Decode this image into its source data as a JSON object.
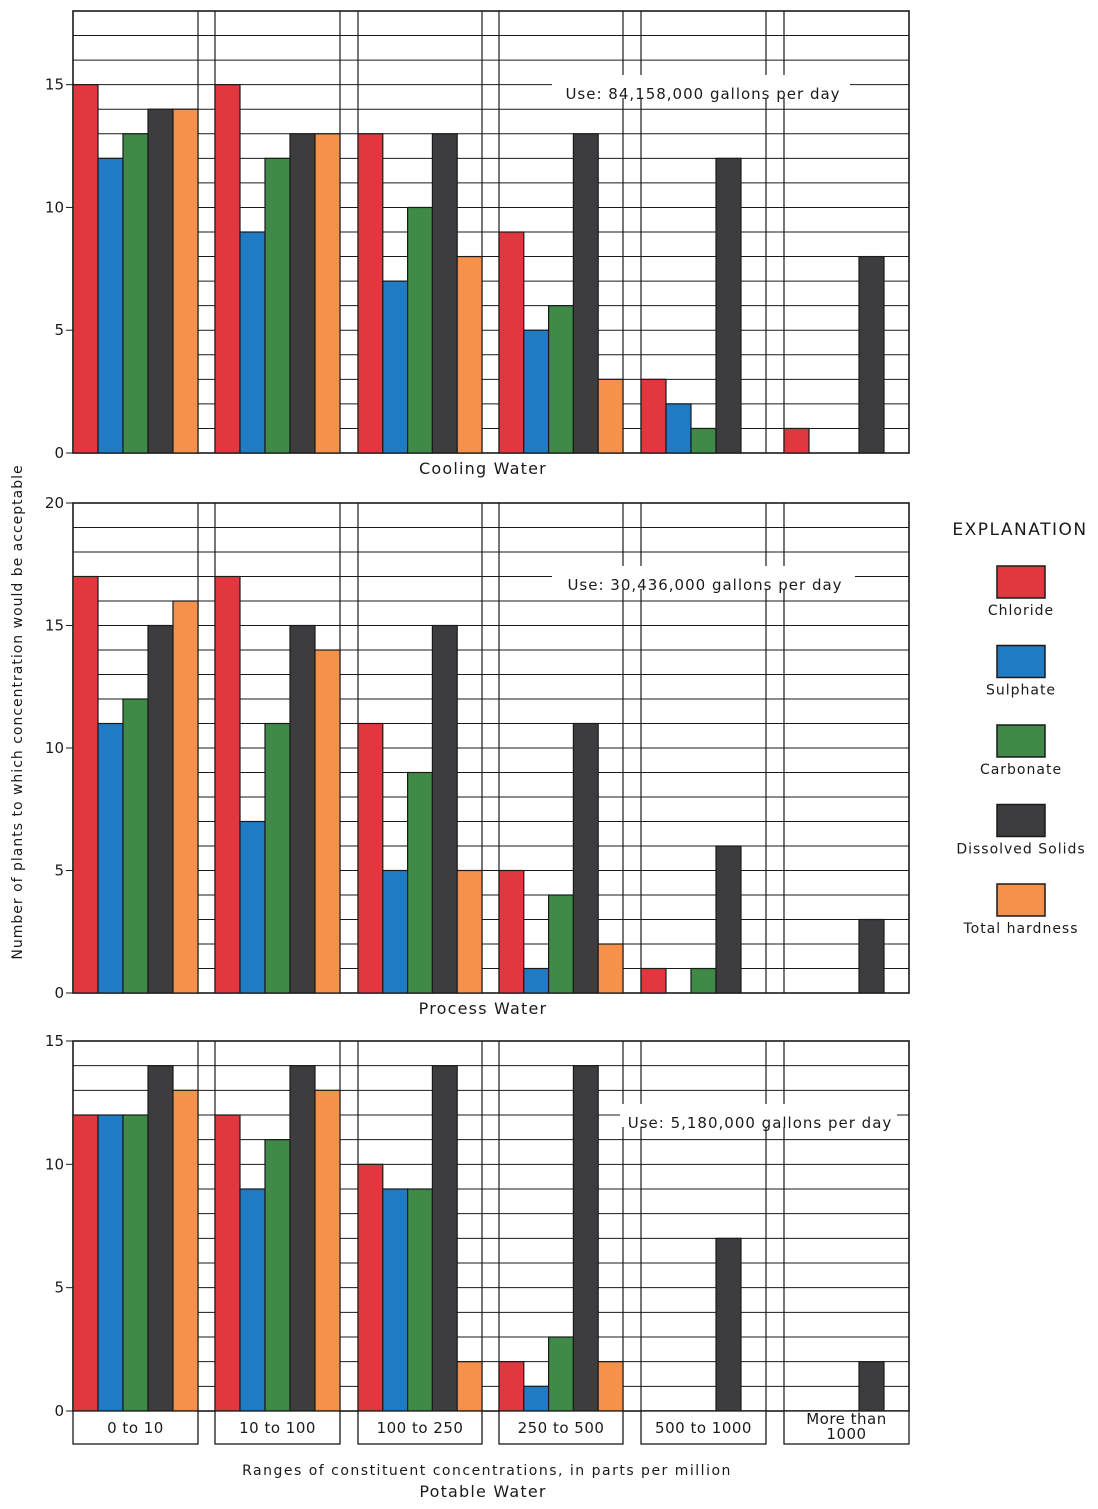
{
  "chart_data": {
    "type": "bar",
    "ylabel": "Number of plants to which concentration would be acceptable",
    "xlabel": "Ranges of constituent concentrations, in parts per million",
    "categories": [
      "0 to 10",
      "10 to 100",
      "100 to 250",
      "250 to 500",
      "500 to 1000",
      "More than 1000"
    ],
    "legend": {
      "title": "EXPLANATION",
      "placement": "right",
      "entries": [
        {
          "name": "Chloride",
          "color": "#e0383e"
        },
        {
          "name": "Sulphate",
          "color": "#1f7bc4"
        },
        {
          "name": "Carbonate",
          "color": "#3f8a46"
        },
        {
          "name": "Dissolved Solids",
          "color": "#3d3d3f"
        },
        {
          "name": "Total hardness",
          "color": "#f5914a"
        }
      ]
    },
    "panels": [
      {
        "title": "Cooling Water",
        "use_note": "Use: 84,158,000 gallons per day",
        "ylim": [
          0,
          18
        ],
        "yticks": [
          0,
          5,
          10,
          15
        ],
        "series": [
          {
            "name": "Chloride",
            "values": [
              15,
              15,
              13,
              9,
              3,
              1
            ]
          },
          {
            "name": "Sulphate",
            "values": [
              12,
              9,
              7,
              5,
              2,
              0
            ]
          },
          {
            "name": "Carbonate",
            "values": [
              13,
              12,
              10,
              6,
              1,
              0
            ]
          },
          {
            "name": "Dissolved Solids",
            "values": [
              14,
              13,
              13,
              13,
              12,
              8
            ]
          },
          {
            "name": "Total hardness",
            "values": [
              14,
              13,
              8,
              3,
              0,
              0
            ]
          }
        ]
      },
      {
        "title": "Process Water",
        "use_note": "Use: 30,436,000 gallons per day",
        "ylim": [
          0,
          20
        ],
        "yticks": [
          0,
          5,
          10,
          15,
          20
        ],
        "series": [
          {
            "name": "Chloride",
            "values": [
              17,
              17,
              11,
              5,
              1,
              0
            ]
          },
          {
            "name": "Sulphate",
            "values": [
              11,
              7,
              5,
              1,
              0,
              0
            ]
          },
          {
            "name": "Carbonate",
            "values": [
              12,
              11,
              9,
              4,
              1,
              0
            ]
          },
          {
            "name": "Dissolved Solids",
            "values": [
              15,
              15,
              15,
              11,
              6,
              3
            ]
          },
          {
            "name": "Total hardness",
            "values": [
              16,
              14,
              5,
              2,
              0,
              0
            ]
          }
        ]
      },
      {
        "title": "Potable Water",
        "use_note": "Use: 5,180,000 gallons per day",
        "ylim": [
          0,
          15
        ],
        "yticks": [
          0,
          5,
          10,
          15
        ],
        "series": [
          {
            "name": "Chloride",
            "values": [
              12,
              12,
              10,
              2,
              0,
              0
            ]
          },
          {
            "name": "Sulphate",
            "values": [
              12,
              9,
              9,
              1,
              0,
              0
            ]
          },
          {
            "name": "Carbonate",
            "values": [
              12,
              11,
              9,
              3,
              0,
              0
            ]
          },
          {
            "name": "Dissolved Solids",
            "values": [
              14,
              14,
              14,
              14,
              7,
              2
            ]
          },
          {
            "name": "Total hardness",
            "values": [
              13,
              13,
              2,
              2,
              0,
              0
            ]
          }
        ]
      }
    ]
  }
}
